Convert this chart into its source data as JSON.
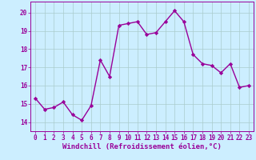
{
  "x": [
    0,
    1,
    2,
    3,
    4,
    5,
    6,
    7,
    8,
    9,
    10,
    11,
    12,
    13,
    14,
    15,
    16,
    17,
    18,
    19,
    20,
    21,
    22,
    23
  ],
  "y": [
    15.3,
    14.7,
    14.8,
    15.1,
    14.4,
    14.1,
    14.9,
    17.4,
    16.5,
    19.3,
    19.4,
    19.5,
    18.8,
    18.9,
    19.5,
    20.1,
    19.5,
    17.7,
    17.2,
    17.1,
    16.7,
    17.2,
    15.9,
    16.0
  ],
  "line_color": "#990099",
  "marker": "D",
  "marker_size": 2.2,
  "bg_color": "#cceeff",
  "grid_color": "#aacccc",
  "xlabel": "Windchill (Refroidissement éolien,°C)",
  "ylim": [
    13.5,
    20.6
  ],
  "xlim": [
    -0.5,
    23.5
  ],
  "yticks": [
    14,
    15,
    16,
    17,
    18,
    19,
    20
  ],
  "xticks": [
    0,
    1,
    2,
    3,
    4,
    5,
    6,
    7,
    8,
    9,
    10,
    11,
    12,
    13,
    14,
    15,
    16,
    17,
    18,
    19,
    20,
    21,
    22,
    23
  ],
  "tick_fontsize": 5.5,
  "xlabel_fontsize": 6.5,
  "line_width": 1.0
}
